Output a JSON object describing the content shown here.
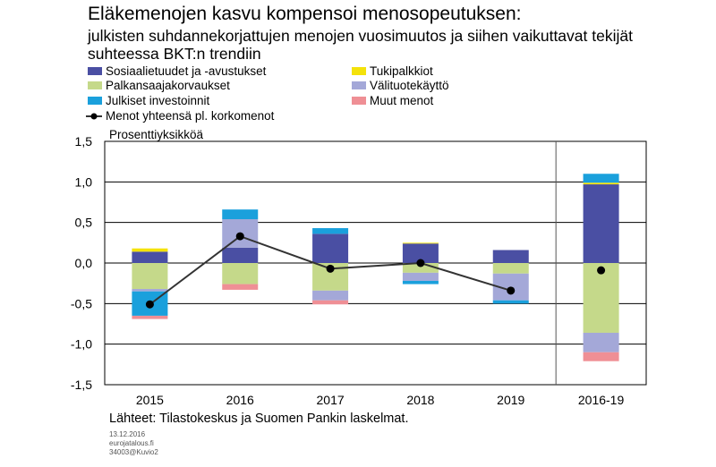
{
  "header": {
    "title": "Eläkemenojen kasvu kompensoi menosopeutuksen:",
    "subtitle": "julkisten suhdannekorjattujen menojen vuosimuutos ja siihen vaikuttavat tekijät suhteessa BKT:n trendiin"
  },
  "legend": {
    "items": [
      {
        "label": "Sosiaalietuudet ja -avustukset",
        "color": "#4a4fa3",
        "kind": "bar"
      },
      {
        "label": "Palkansaajakorvaukset",
        "color": "#c5d98a",
        "kind": "bar"
      },
      {
        "label": "Julkiset investoinnit",
        "color": "#1aa0dc",
        "kind": "bar"
      },
      {
        "label": "Menot yhteensä pl. korkomenot",
        "color": "#333333",
        "kind": "line"
      },
      {
        "label": "Tukipalkkiot",
        "color": "#f4e20a",
        "kind": "bar"
      },
      {
        "label": "Välituotekäyttö",
        "color": "#a4a8d8",
        "kind": "bar"
      },
      {
        "label": "Muut menot",
        "color": "#ef8f95",
        "kind": "bar"
      }
    ]
  },
  "unit_label": "Prosenttiyksikköä",
  "footer": {
    "source": "Lähteet: Tilastokeskus ja Suomen Pankin laskelmat.",
    "date": "13.12.2016",
    "site": "eurojatalous.fi",
    "code": "34003@Kuvio2"
  },
  "chart_data": {
    "type": "bar",
    "stacked": true,
    "categories": [
      "2015",
      "2016",
      "2017",
      "2018",
      "2019",
      "2016-19"
    ],
    "ylim": [
      -1.5,
      1.5
    ],
    "yticks": [
      -1.5,
      -1.0,
      -0.5,
      0.0,
      0.5,
      1.0,
      1.5
    ],
    "ytick_labels": [
      "-1,5",
      "-1,0",
      "-0,5",
      "0,0",
      "0,5",
      "1,0",
      "1,5"
    ],
    "separator_after_index": 4,
    "gridlines": true,
    "series": [
      {
        "name": "Sosiaalietuudet ja -avustukset",
        "color": "#4a4fa3",
        "values": [
          0.14,
          0.19,
          0.36,
          0.24,
          0.16,
          0.97
        ]
      },
      {
        "name": "Tukipalkkiot",
        "color": "#f4e20a",
        "values": [
          0.04,
          0.0,
          0.0,
          0.01,
          0.0,
          0.02
        ]
      },
      {
        "name": "Palkansaajakorvaukset",
        "color": "#c5d98a",
        "values": [
          -0.32,
          -0.26,
          -0.34,
          -0.12,
          -0.13,
          -0.86
        ]
      },
      {
        "name": "Välituotekäyttö",
        "color": "#a4a8d8",
        "values": [
          -0.03,
          0.35,
          -0.12,
          -0.1,
          -0.33,
          -0.24
        ]
      },
      {
        "name": "Julkiset investoinnit",
        "color": "#1aa0dc",
        "values": [
          -0.3,
          0.12,
          0.07,
          -0.04,
          -0.04,
          0.11
        ]
      },
      {
        "name": "Muut menot",
        "color": "#ef8f95",
        "values": [
          -0.04,
          -0.07,
          -0.05,
          0.0,
          0.0,
          -0.11
        ]
      }
    ],
    "line": {
      "name": "Menot yhteensä pl. korkomenot",
      "color": "#333333",
      "values": [
        -0.51,
        0.33,
        -0.07,
        0.0,
        -0.34,
        -0.09
      ],
      "connect_first_n": 5
    }
  }
}
